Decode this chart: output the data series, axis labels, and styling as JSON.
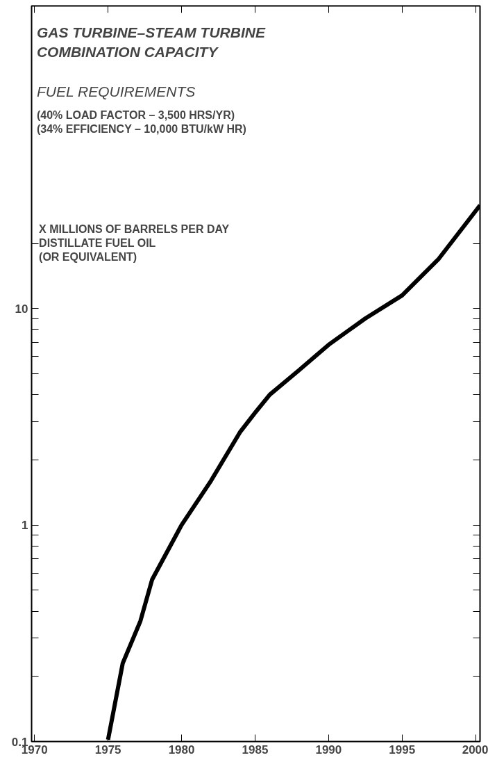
{
  "chart_data": {
    "type": "line",
    "title": "GAS TURBINE–STEAM TURBINE\nCOMBINATION CAPACITY",
    "subtitle": "FUEL REQUIREMENTS",
    "annotations": [
      "(40% LOAD FACTOR – 3,500 HRS/YR)\n(34% EFFICIENCY – 10,000 BTU/kW HR)"
    ],
    "ylabel": "X MILLIONS OF BARRELS PER DAY\n   DISTILLATE FUEL OIL\n      (OR EQUIVALENT)",
    "x": [
      1975,
      1976,
      1977.2,
      1978,
      1980,
      1982,
      1984,
      1985,
      1986,
      1988,
      1990,
      1992.5,
      1995,
      1997.5,
      2000.3
    ],
    "series": [
      {
        "color": "#000000",
        "values": [
          0.102,
          0.23,
          0.36,
          0.56,
          1.0,
          1.6,
          2.7,
          3.3,
          4.0,
          5.2,
          6.8,
          9.0,
          11.5,
          17,
          30
        ]
      }
    ],
    "log": "y",
    "xlim": [
      1969.8,
      2000.3
    ],
    "ylim": [
      0.1,
      250
    ],
    "xticks": [
      1970,
      1975,
      1980,
      1985,
      1990,
      1995,
      2000
    ],
    "yticks": [
      0.1,
      {
        "value": 0.2,
        "label": null
      },
      {
        "value": 0.3,
        "label": null
      },
      {
        "value": 0.4,
        "label": null
      },
      {
        "value": 0.5,
        "label": null
      },
      {
        "value": 0.6,
        "label": null
      },
      {
        "value": 0.7,
        "label": null
      },
      {
        "value": 0.8,
        "label": null
      },
      {
        "value": 0.9,
        "label": null
      },
      1,
      {
        "value": 2,
        "label": null
      },
      {
        "value": 3,
        "label": null
      },
      {
        "value": 4,
        "label": null
      },
      {
        "value": 5,
        "label": null
      },
      {
        "value": 6,
        "label": null
      },
      {
        "value": 7,
        "label": null
      },
      {
        "value": 8,
        "label": null
      },
      {
        "value": 9,
        "label": null
      },
      10,
      {
        "value": 20,
        "label": null
      }
    ],
    "grid": false,
    "marker": "none",
    "line_style": "solid"
  }
}
